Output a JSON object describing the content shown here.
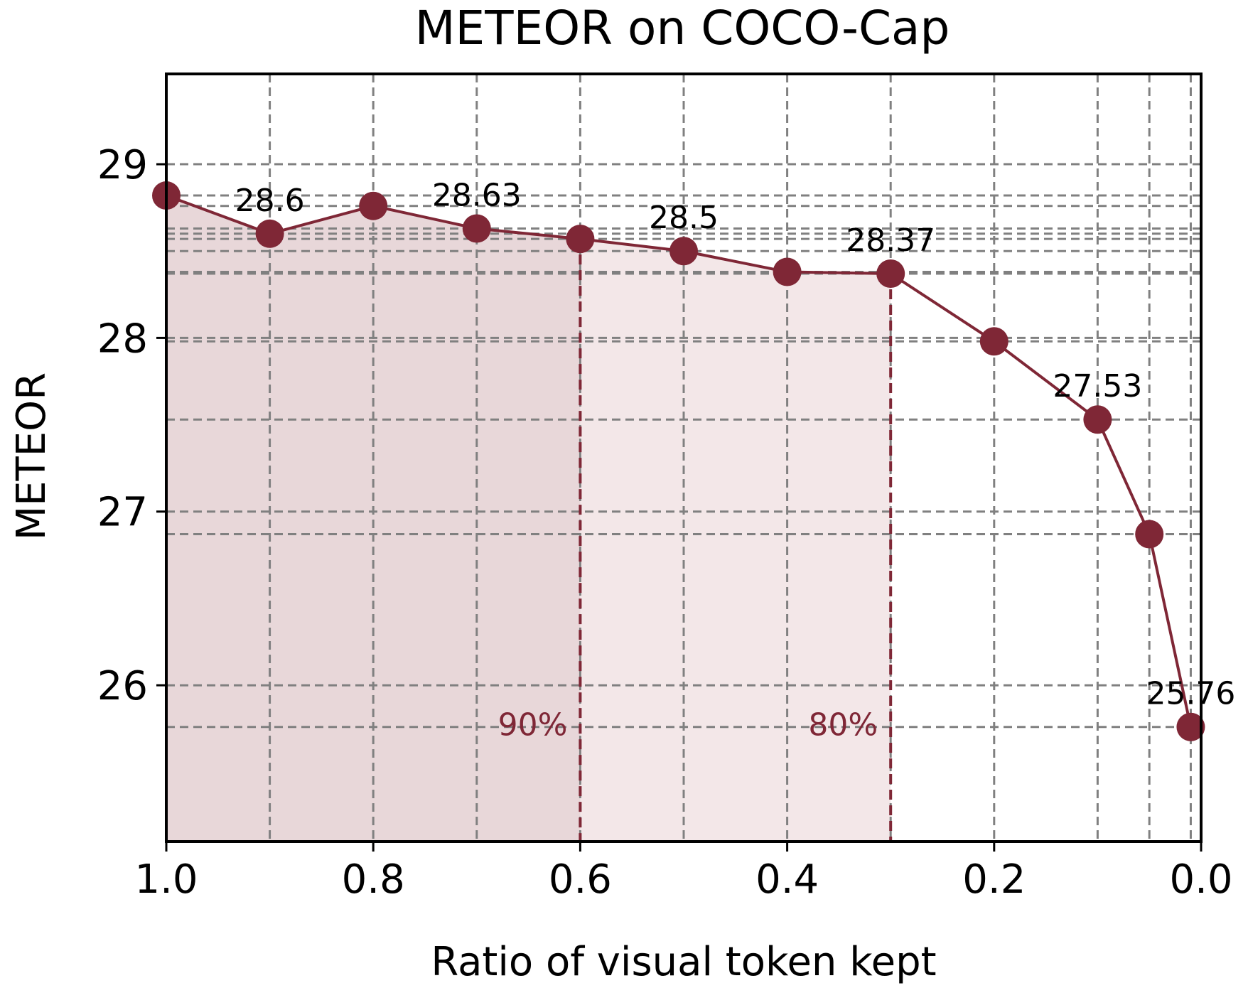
{
  "chart_data": {
    "type": "line",
    "title": "METEOR on COCO-Cap",
    "xlabel": "Ratio of visual token kept",
    "ylabel": "METEOR",
    "xlim": [
      1.0,
      0.0
    ],
    "ylim": [
      25.1,
      29.52
    ],
    "x_inverted": true,
    "xticks": [
      1.0,
      0.8,
      0.6,
      0.4,
      0.2,
      0.0
    ],
    "xtick_labels": [
      "1.0",
      "0.8",
      "0.6",
      "0.4",
      "0.2",
      "0.0"
    ],
    "yticks": [
      26,
      27,
      28,
      29
    ],
    "ytick_labels": [
      "26",
      "27",
      "28",
      "29"
    ],
    "grid": true,
    "series": [
      {
        "x": [
          1.0,
          0.9,
          0.8,
          0.7,
          0.6,
          0.5,
          0.4,
          0.3,
          0.2,
          0.1,
          0.05,
          0.01
        ],
        "y": [
          28.82,
          28.6,
          28.76,
          28.63,
          28.57,
          28.5,
          28.38,
          28.37,
          27.98,
          27.53,
          26.87,
          25.76
        ],
        "color": "#7f2736"
      }
    ],
    "data_labels": [
      {
        "x": 0.9,
        "y": 28.6,
        "text": "28.6"
      },
      {
        "x": 0.7,
        "y": 28.63,
        "text": "28.63"
      },
      {
        "x": 0.5,
        "y": 28.5,
        "text": "28.5"
      },
      {
        "x": 0.3,
        "y": 28.37,
        "text": "28.37"
      },
      {
        "x": 0.1,
        "y": 27.53,
        "text": "27.53"
      },
      {
        "x": 0.01,
        "y": 25.76,
        "text": "25.76"
      }
    ],
    "thresholds": [
      {
        "x": 0.6,
        "label": "90%",
        "shade_color": "#e8d7d9"
      },
      {
        "x": 0.3,
        "label": "80%",
        "shade_color": "#f3e7e8"
      }
    ],
    "colors": {
      "line": "#7f2736",
      "grid": "#808080",
      "threshold": "#7f2736"
    }
  }
}
